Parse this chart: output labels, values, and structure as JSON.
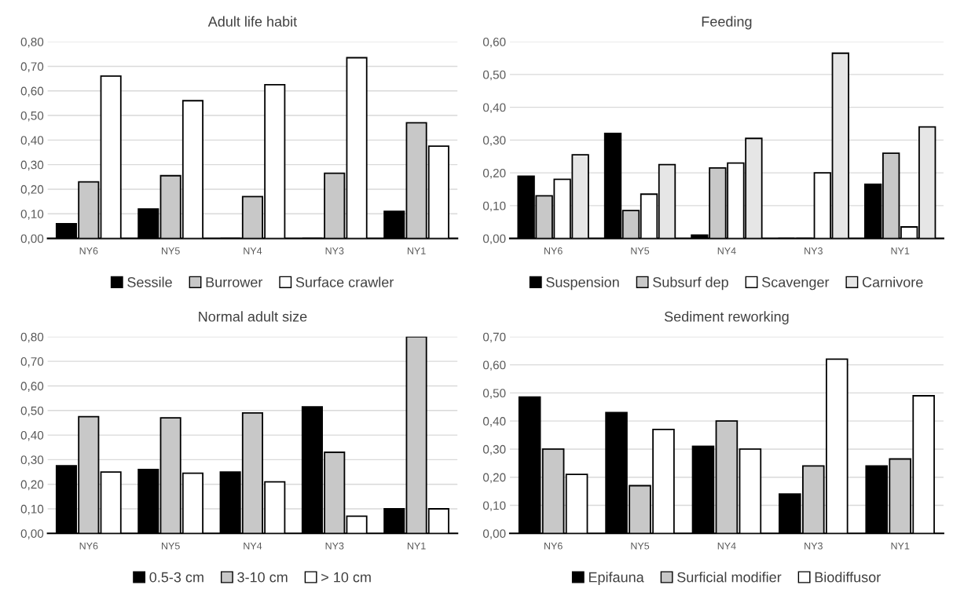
{
  "chart_data": [
    {
      "type": "bar",
      "title": "Adult life habit",
      "categories": [
        "NY6",
        "NY5",
        "NY4",
        "NY3",
        "NY1"
      ],
      "series": [
        {
          "name": "Sessile",
          "color": "#000000",
          "values": [
            0.06,
            0.12,
            0,
            0,
            0.11
          ]
        },
        {
          "name": "Burrower",
          "color": "#c8c8c8",
          "values": [
            0.23,
            0.255,
            0.17,
            0.265,
            0.47
          ]
        },
        {
          "name": "Surface crawler",
          "color": "#ffffff",
          "values": [
            0.66,
            0.56,
            0.625,
            0.735,
            0.375
          ]
        }
      ],
      "ylim": [
        0,
        0.8
      ],
      "yticks": [
        {
          "value": 0,
          "label": "0,00"
        },
        {
          "value": 0.1,
          "label": "0,10"
        },
        {
          "value": 0.2,
          "label": "0,20"
        },
        {
          "value": 0.3,
          "label": "0,30"
        },
        {
          "value": 0.4,
          "label": "0,40"
        },
        {
          "value": 0.5,
          "label": "0,50"
        },
        {
          "value": 0.6,
          "label": "0,60"
        },
        {
          "value": 0.7,
          "label": "0,70"
        },
        {
          "value": 0.8,
          "label": "0,80"
        }
      ],
      "grid": "y",
      "legend": "bottom"
    },
    {
      "type": "bar",
      "title": "Feeding",
      "categories": [
        "NY6",
        "NY5",
        "NY4",
        "NY3",
        "NY1"
      ],
      "series": [
        {
          "name": "Suspension",
          "color": "#000000",
          "values": [
            0.19,
            0.32,
            0.01,
            0,
            0.165
          ]
        },
        {
          "name": "Subsurf dep",
          "color": "#c8c8c8",
          "values": [
            0.13,
            0.085,
            0.215,
            0,
            0.26
          ]
        },
        {
          "name": "Scavenger",
          "color": "#ffffff",
          "values": [
            0.18,
            0.135,
            0.23,
            0.2,
            0.035
          ]
        },
        {
          "name": "Carnivore",
          "color": "#e6e6e6",
          "values": [
            0.255,
            0.225,
            0.305,
            0.565,
            0.34
          ]
        }
      ],
      "ylim": [
        0,
        0.6
      ],
      "yticks": [
        {
          "value": 0,
          "label": "0,00"
        },
        {
          "value": 0.1,
          "label": "0,10"
        },
        {
          "value": 0.2,
          "label": "0,20"
        },
        {
          "value": 0.3,
          "label": "0,30"
        },
        {
          "value": 0.4,
          "label": "0,40"
        },
        {
          "value": 0.5,
          "label": "0,50"
        },
        {
          "value": 0.6,
          "label": "0,60"
        }
      ],
      "grid": "y",
      "legend": "bottom"
    },
    {
      "type": "bar",
      "title": "Normal adult size",
      "categories": [
        "NY6",
        "NY5",
        "NY4",
        "NY3",
        "NY1"
      ],
      "series": [
        {
          "name": "0.5-3 cm",
          "color": "#000000",
          "values": [
            0.275,
            0.26,
            0.25,
            0.515,
            0.1
          ]
        },
        {
          "name": "3-10 cm",
          "color": "#c8c8c8",
          "values": [
            0.475,
            0.47,
            0.49,
            0.33,
            0.8
          ]
        },
        {
          "name": "> 10 cm",
          "color": "#ffffff",
          "values": [
            0.25,
            0.245,
            0.21,
            0.07,
            0.1
          ]
        }
      ],
      "ylim": [
        0,
        0.8
      ],
      "yticks": [
        {
          "value": 0,
          "label": "0,00"
        },
        {
          "value": 0.1,
          "label": "0,10"
        },
        {
          "value": 0.2,
          "label": "0,20"
        },
        {
          "value": 0.3,
          "label": "0,30"
        },
        {
          "value": 0.4,
          "label": "0,40"
        },
        {
          "value": 0.5,
          "label": "0,50"
        },
        {
          "value": 0.6,
          "label": "0,60"
        },
        {
          "value": 0.7,
          "label": "0,70"
        },
        {
          "value": 0.8,
          "label": "0,80"
        }
      ],
      "grid": "y",
      "legend": "bottom"
    },
    {
      "type": "bar",
      "title": "Sediment reworking",
      "categories": [
        "NY6",
        "NY5",
        "NY4",
        "NY3",
        "NY1"
      ],
      "series": [
        {
          "name": "Epifauna",
          "color": "#000000",
          "values": [
            0.485,
            0.43,
            0.31,
            0.14,
            0.24
          ]
        },
        {
          "name": "Surficial modifier",
          "color": "#c8c8c8",
          "values": [
            0.3,
            0.17,
            0.4,
            0.24,
            0.265
          ]
        },
        {
          "name": "Biodiffusor",
          "color": "#ffffff",
          "values": [
            0.21,
            0.37,
            0.3,
            0.62,
            0.49
          ]
        }
      ],
      "ylim": [
        0,
        0.7
      ],
      "yticks": [
        {
          "value": 0,
          "label": "0,00"
        },
        {
          "value": 0.1,
          "label": "0,10"
        },
        {
          "value": 0.2,
          "label": "0,20"
        },
        {
          "value": 0.3,
          "label": "0,30"
        },
        {
          "value": 0.4,
          "label": "0,40"
        },
        {
          "value": 0.5,
          "label": "0,50"
        },
        {
          "value": 0.6,
          "label": "0,60"
        },
        {
          "value": 0.7,
          "label": "0,70"
        }
      ],
      "grid": "y",
      "legend": "bottom"
    }
  ]
}
